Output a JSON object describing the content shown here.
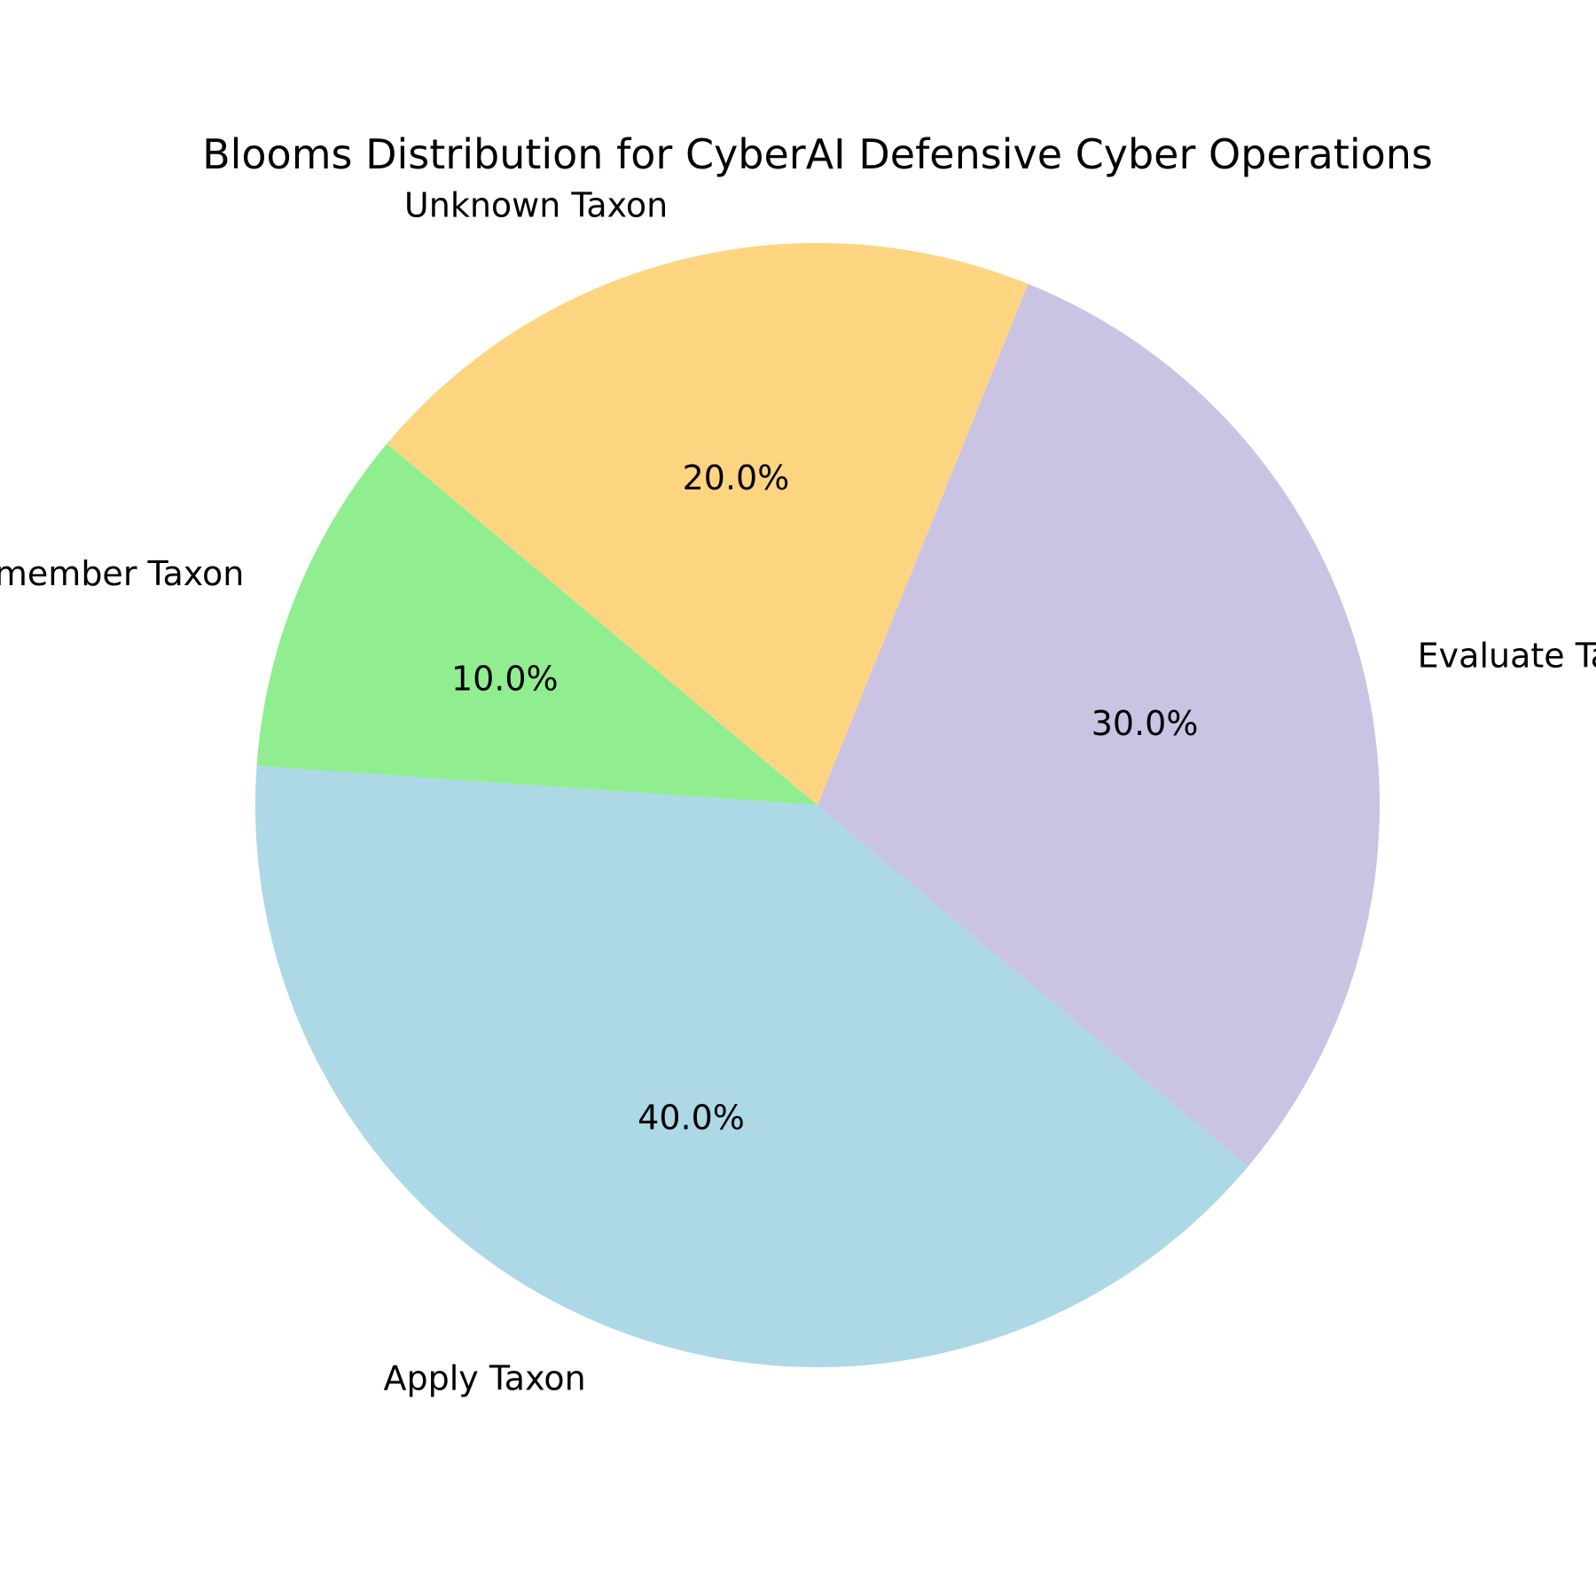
{
  "chart_data": {
    "type": "pie",
    "title": "Blooms Distribution for CyberAI Defensive Cyber Operations",
    "start_angle_deg": 176,
    "direction": "counterclockwise",
    "slices": [
      {
        "label": "Apply Taxon",
        "value": 40,
        "pct_label": "40.0%",
        "color": "#add8e6"
      },
      {
        "label": "Evaluate Taxon",
        "value": 30,
        "pct_label": "30.0%",
        "color": "#cbc3e3"
      },
      {
        "label": "Unknown Taxon",
        "value": 20,
        "pct_label": "20.0%",
        "color": "#fdd581"
      },
      {
        "label": "Remember Taxon",
        "value": 10,
        "pct_label": "10.0%",
        "color": "#90ee90"
      }
    ]
  }
}
